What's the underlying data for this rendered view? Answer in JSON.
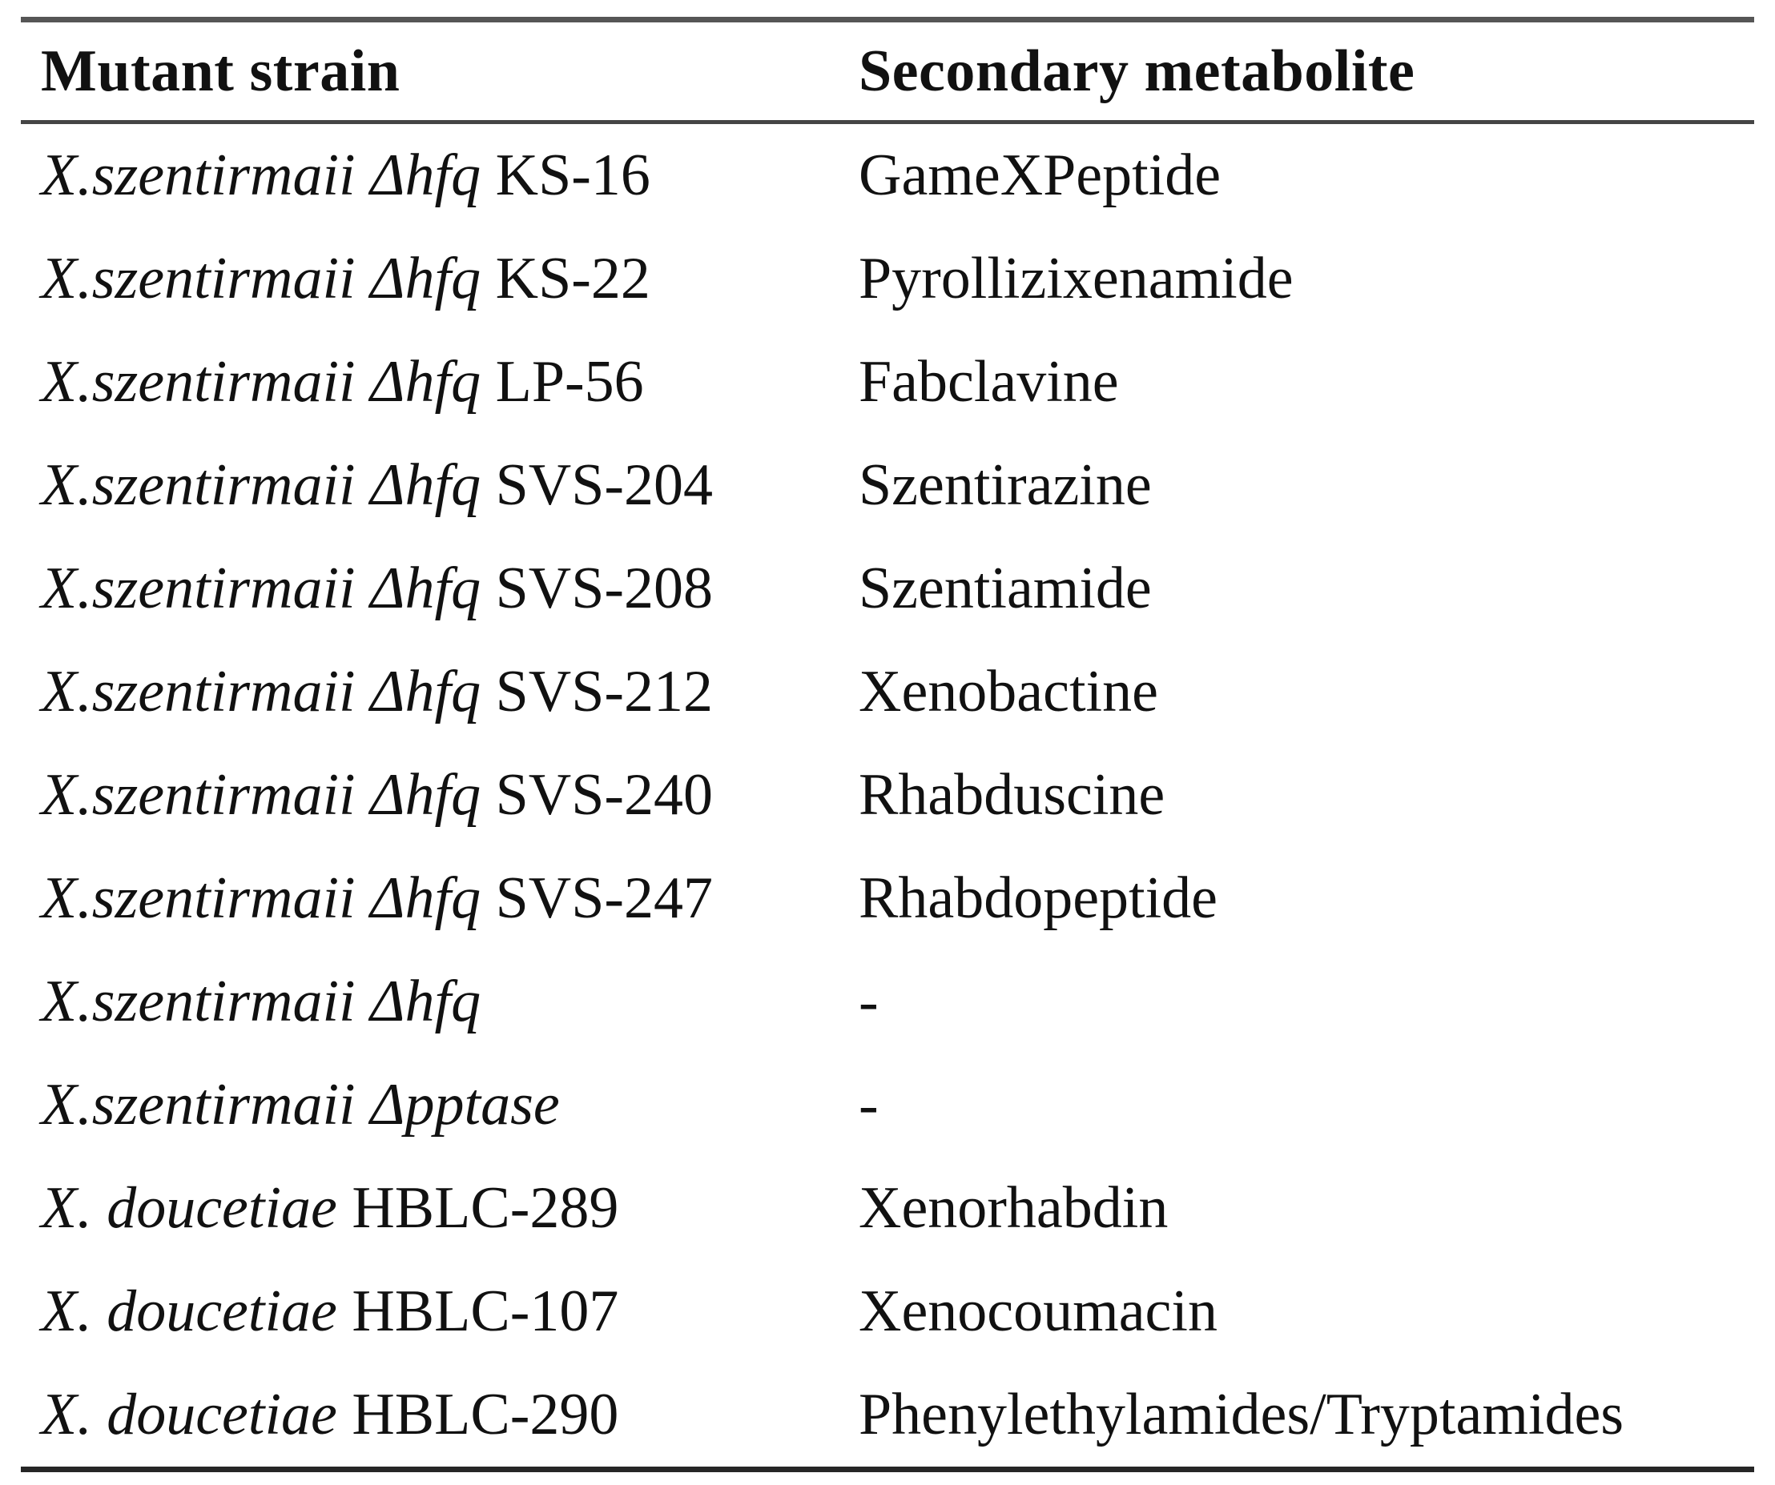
{
  "table": {
    "columns": [
      {
        "label": "Mutant strain"
      },
      {
        "label": "Secondary metabolite"
      }
    ],
    "rows": [
      {
        "strain_italic": "X.szentirmaii Δhfq",
        "strain_suffix": "KS-16",
        "metabolite": "GameXPeptide"
      },
      {
        "strain_italic": "X.szentirmaii Δhfq",
        "strain_suffix": "KS-22",
        "metabolite": "Pyrollizixenamide"
      },
      {
        "strain_italic": "X.szentirmaii Δhfq",
        "strain_suffix": "LP-56",
        "metabolite": "Fabclavine"
      },
      {
        "strain_italic": "X.szentirmaii Δhfq",
        "strain_suffix": "SVS-204",
        "metabolite": "Szentirazine"
      },
      {
        "strain_italic": "X.szentirmaii Δhfq",
        "strain_suffix": "SVS-208",
        "metabolite": "Szentiamide"
      },
      {
        "strain_italic": "X.szentirmaii Δhfq",
        "strain_suffix": "SVS-212",
        "metabolite": "Xenobactine"
      },
      {
        "strain_italic": "X.szentirmaii Δhfq",
        "strain_suffix": "SVS-240",
        "metabolite": "Rhabduscine"
      },
      {
        "strain_italic": "X.szentirmaii Δhfq",
        "strain_suffix": "SVS-247",
        "metabolite": "Rhabdopeptide"
      },
      {
        "strain_italic": "X.szentirmaii Δhfq",
        "strain_suffix": "",
        "metabolite": "-"
      },
      {
        "strain_italic": "X.szentirmaii Δpptase",
        "strain_suffix": "",
        "metabolite": "-"
      },
      {
        "strain_italic": "X. doucetiae",
        "strain_suffix": "HBLC-289",
        "metabolite": "Xenorhabdin"
      },
      {
        "strain_italic": "X. doucetiae",
        "strain_suffix": "HBLC-107",
        "metabolite": "Xenocoumacin"
      },
      {
        "strain_italic": "X. doucetiae",
        "strain_suffix": "HBLC-290",
        "metabolite": "Phenylethylamides/Tryptamides"
      }
    ]
  },
  "colors": {
    "text": "#111111",
    "rule_top": "#565656",
    "rule_header": "#454545",
    "rule_bottom": "#262626",
    "background": "#ffffff"
  }
}
